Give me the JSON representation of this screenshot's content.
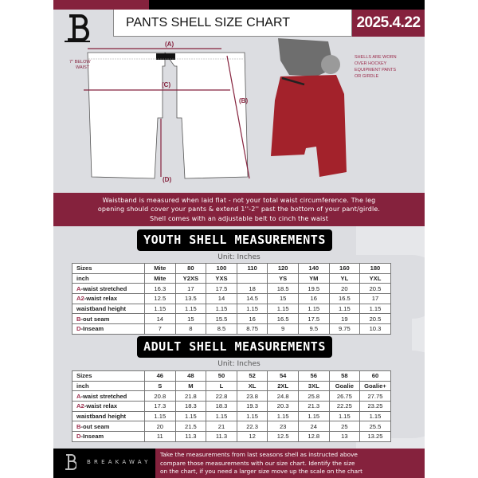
{
  "header": {
    "title": "PANTS SHELL SIZE CHART",
    "date": "2025.4.22",
    "logo_letter": "B"
  },
  "diagram": {
    "label_a": "(A)",
    "label_b": "(B)",
    "label_c": "(C)",
    "label_d": "(D)",
    "below_waist": [
      "7'' BELOW",
      "WAIST"
    ],
    "note": [
      "SHELLS ARE WORN",
      "OVER HOCKEY",
      "EQUIPMENT PANTS",
      "OR GIRDLE"
    ]
  },
  "band_text": [
    "Waistband is measured when laid flat - not your total waist circumference. The leg",
    "opening should cover your pants & extend 1''-2'' past the bottom of your pant/girdle.",
    "Shell comes with an adjustable belt to cinch the waist"
  ],
  "youth": {
    "title": "YOUTH SHELL MEASUREMENTS",
    "unit": "Unit: Inches",
    "rows": [
      {
        "key": "",
        "label": "Sizes",
        "values": [
          "Mite",
          "80",
          "100",
          "110",
          "120",
          "140",
          "160",
          "180"
        ]
      },
      {
        "key": "",
        "label": "inch",
        "values": [
          "Mite",
          "Y2XS",
          "YXS",
          "",
          "YS",
          "YM",
          "YL",
          "YXL"
        ]
      },
      {
        "key": "A",
        "label": "-waist stretched",
        "values": [
          "16.3",
          "17",
          "17.5",
          "18",
          "18.5",
          "19.5",
          "20",
          "20.5"
        ]
      },
      {
        "key": "A2",
        "label": "-waist relax",
        "values": [
          "12.5",
          "13.5",
          "14",
          "14.5",
          "15",
          "16",
          "16.5",
          "17"
        ]
      },
      {
        "key": "",
        "label": "waistband height",
        "values": [
          "1.15",
          "1.15",
          "1.15",
          "1.15",
          "1.15",
          "1.15",
          "1.15",
          "1.15"
        ]
      },
      {
        "key": "B",
        "label": "-out seam",
        "values": [
          "14",
          "15",
          "15.5",
          "16",
          "16.5",
          "17.5",
          "19",
          "20.5"
        ]
      },
      {
        "key": "D",
        "label": "-Inseam",
        "values": [
          "7",
          "8",
          "8.5",
          "8.75",
          "9",
          "9.5",
          "9.75",
          "10.3"
        ]
      }
    ]
  },
  "adult": {
    "title": "ADULT SHELL MEASUREMENTS",
    "unit": "Unit: Inches",
    "rows": [
      {
        "key": "",
        "label": "Sizes",
        "values": [
          "46",
          "48",
          "50",
          "52",
          "54",
          "56",
          "58",
          "60"
        ]
      },
      {
        "key": "",
        "label": "inch",
        "values": [
          "S",
          "M",
          "L",
          "XL",
          "2XL",
          "3XL",
          "Goalie",
          "Goalie+"
        ]
      },
      {
        "key": "A",
        "label": "-waist stretched",
        "values": [
          "20.8",
          "21.8",
          "22.8",
          "23.8",
          "24.8",
          "25.8",
          "26.75",
          "27.75"
        ]
      },
      {
        "key": "A2",
        "label": "-waist relax",
        "values": [
          "17.3",
          "18.3",
          "18.3",
          "19.3",
          "20.3",
          "21.3",
          "22.25",
          "23.25"
        ]
      },
      {
        "key": "",
        "label": "waistband height",
        "values": [
          "1.15",
          "1.15",
          "1.15",
          "1.15",
          "1.15",
          "1.15",
          "1.15",
          "1.15"
        ]
      },
      {
        "key": "B",
        "label": "-out seam",
        "values": [
          "20",
          "21.5",
          "21",
          "22.3",
          "23",
          "24",
          "25",
          "25.5"
        ]
      },
      {
        "key": "D",
        "label": "-Inseam",
        "values": [
          "11",
          "11.3",
          "11.3",
          "12",
          "12.5",
          "12.8",
          "13",
          "13.25"
        ]
      }
    ]
  },
  "footer": {
    "brand": "BREAKAWAY",
    "text": [
      "Take the measurements from last seasons shell as instructed above",
      "compare those measurements  with our size chart. Identify the size",
      "on the chart, if you need a larger size move up the scale on the chart"
    ]
  },
  "colors": {
    "maroon": "#85223d",
    "background": "#dcdde1",
    "shell_red": "#a3222b"
  }
}
